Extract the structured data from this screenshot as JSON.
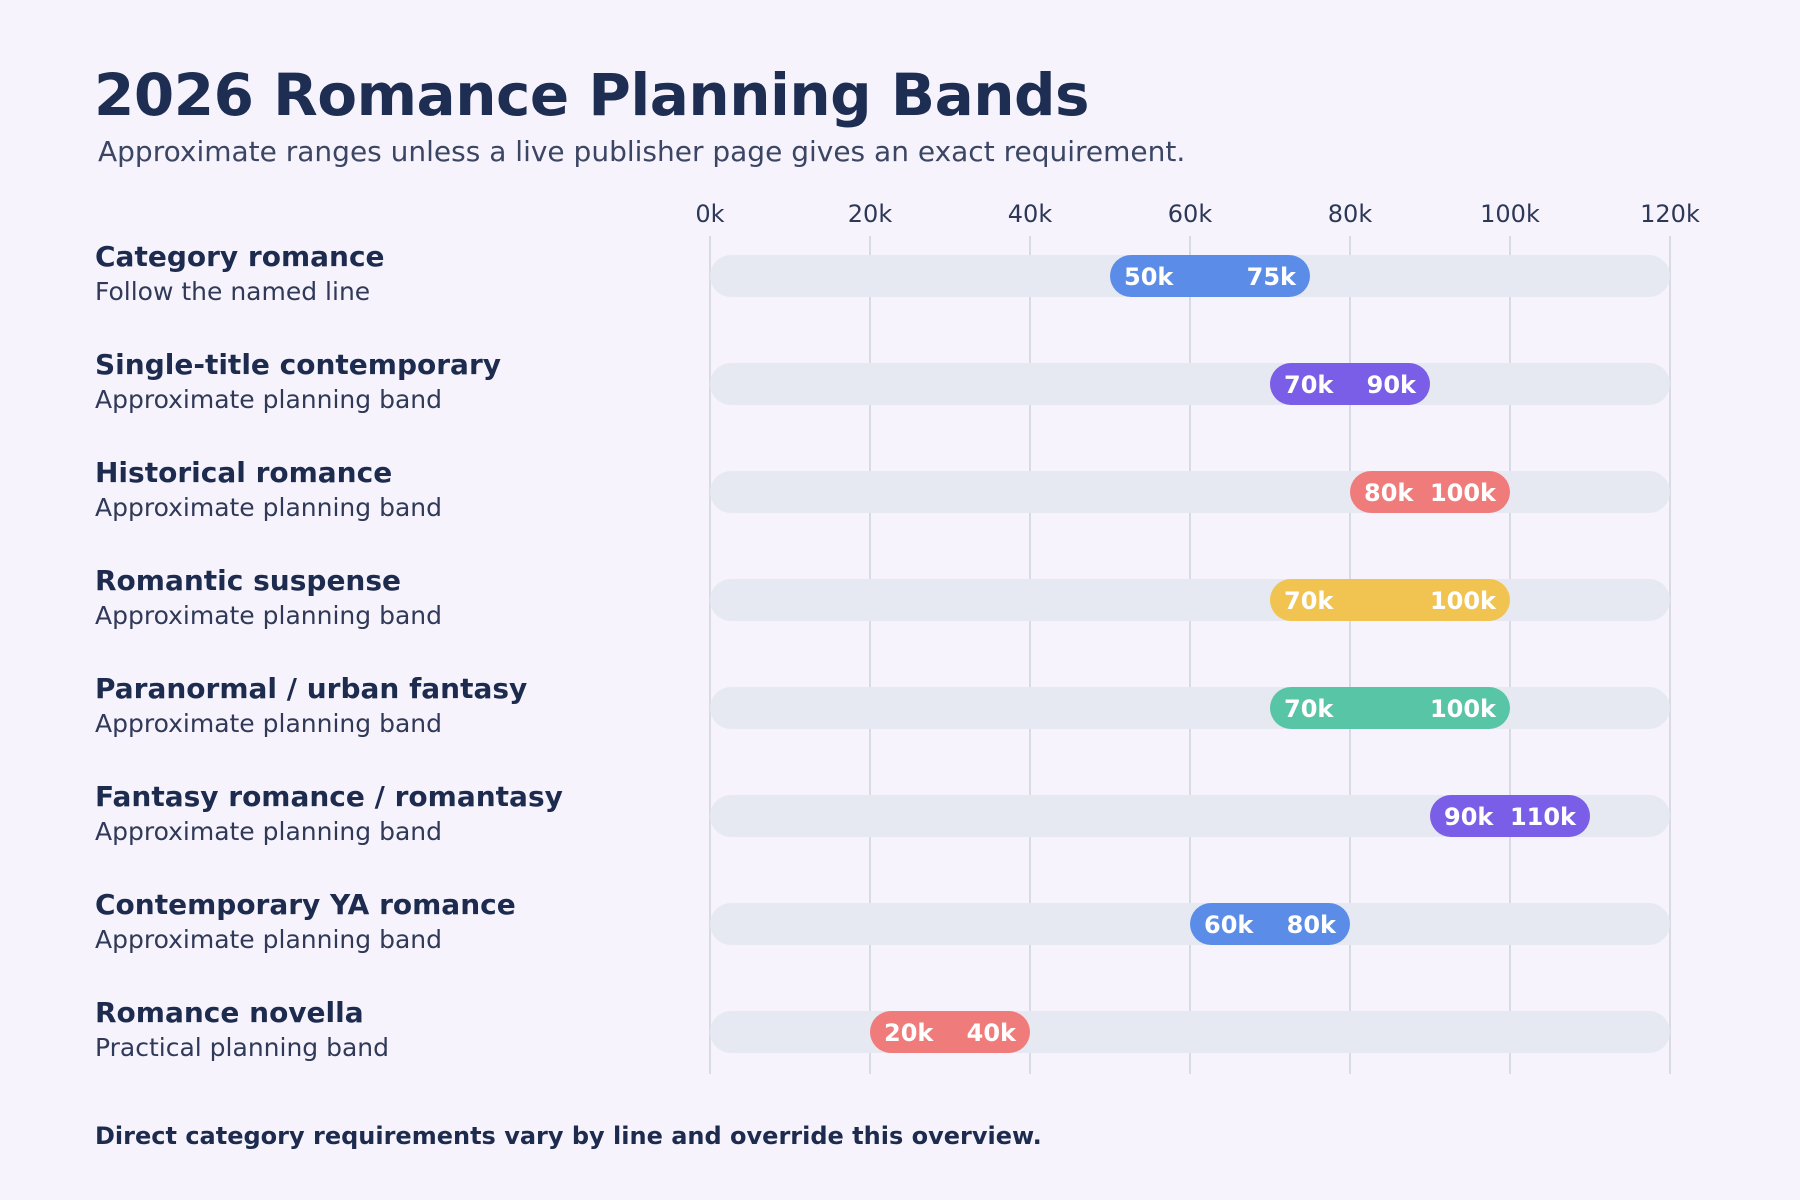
{
  "chart_data": {
    "type": "bar",
    "title": "2026 Romance Planning Bands",
    "subtitle": "Approximate ranges unless a live publisher page gives an exact requirement.",
    "xlim": [
      0,
      120000
    ],
    "x_ticks": [
      0,
      20000,
      40000,
      60000,
      80000,
      100000,
      120000
    ],
    "x_tick_labels": [
      "0k",
      "20k",
      "40k",
      "60k",
      "80k",
      "100k",
      "120k"
    ],
    "grid": true,
    "legend": "none",
    "categories": [
      "Category romance",
      "Single-title contemporary",
      "Historical romance",
      "Romantic suspense",
      "Paranormal / urban fantasy",
      "Fantasy romance / romantasy",
      "Contemporary YA romance",
      "Romance novella"
    ],
    "rows": [
      {
        "title": "Category romance",
        "subtitle": "Follow the named line",
        "min": 50000,
        "max": 75000,
        "min_label": "50k",
        "max_label": "75k",
        "color": "#5b8de8"
      },
      {
        "title": "Single-title contemporary",
        "subtitle": "Approximate planning band",
        "min": 70000,
        "max": 90000,
        "min_label": "70k",
        "max_label": "90k",
        "color": "#7a5ee8"
      },
      {
        "title": "Historical romance",
        "subtitle": "Approximate planning band",
        "min": 80000,
        "max": 100000,
        "min_label": "80k",
        "max_label": "100k",
        "color": "#f07b7b"
      },
      {
        "title": "Romantic suspense",
        "subtitle": "Approximate planning band",
        "min": 70000,
        "max": 100000,
        "min_label": "70k",
        "max_label": "100k",
        "color": "#f1c351"
      },
      {
        "title": "Paranormal / urban fantasy",
        "subtitle": "Approximate planning band",
        "min": 70000,
        "max": 100000,
        "min_label": "70k",
        "max_label": "100k",
        "color": "#58c6a6"
      },
      {
        "title": "Fantasy romance / romantasy",
        "subtitle": "Approximate planning band",
        "min": 90000,
        "max": 110000,
        "min_label": "90k",
        "max_label": "110k",
        "color": "#7a5ee8"
      },
      {
        "title": "Contemporary YA romance",
        "subtitle": "Approximate planning band",
        "min": 60000,
        "max": 80000,
        "min_label": "60k",
        "max_label": "80k",
        "color": "#5b8de8"
      },
      {
        "title": "Romance novella",
        "subtitle": "Practical planning band",
        "min": 20000,
        "max": 40000,
        "min_label": "20k",
        "max_label": "40k",
        "color": "#f07b7b"
      }
    ],
    "footnote": "Direct category requirements vary by line and override this overview."
  }
}
